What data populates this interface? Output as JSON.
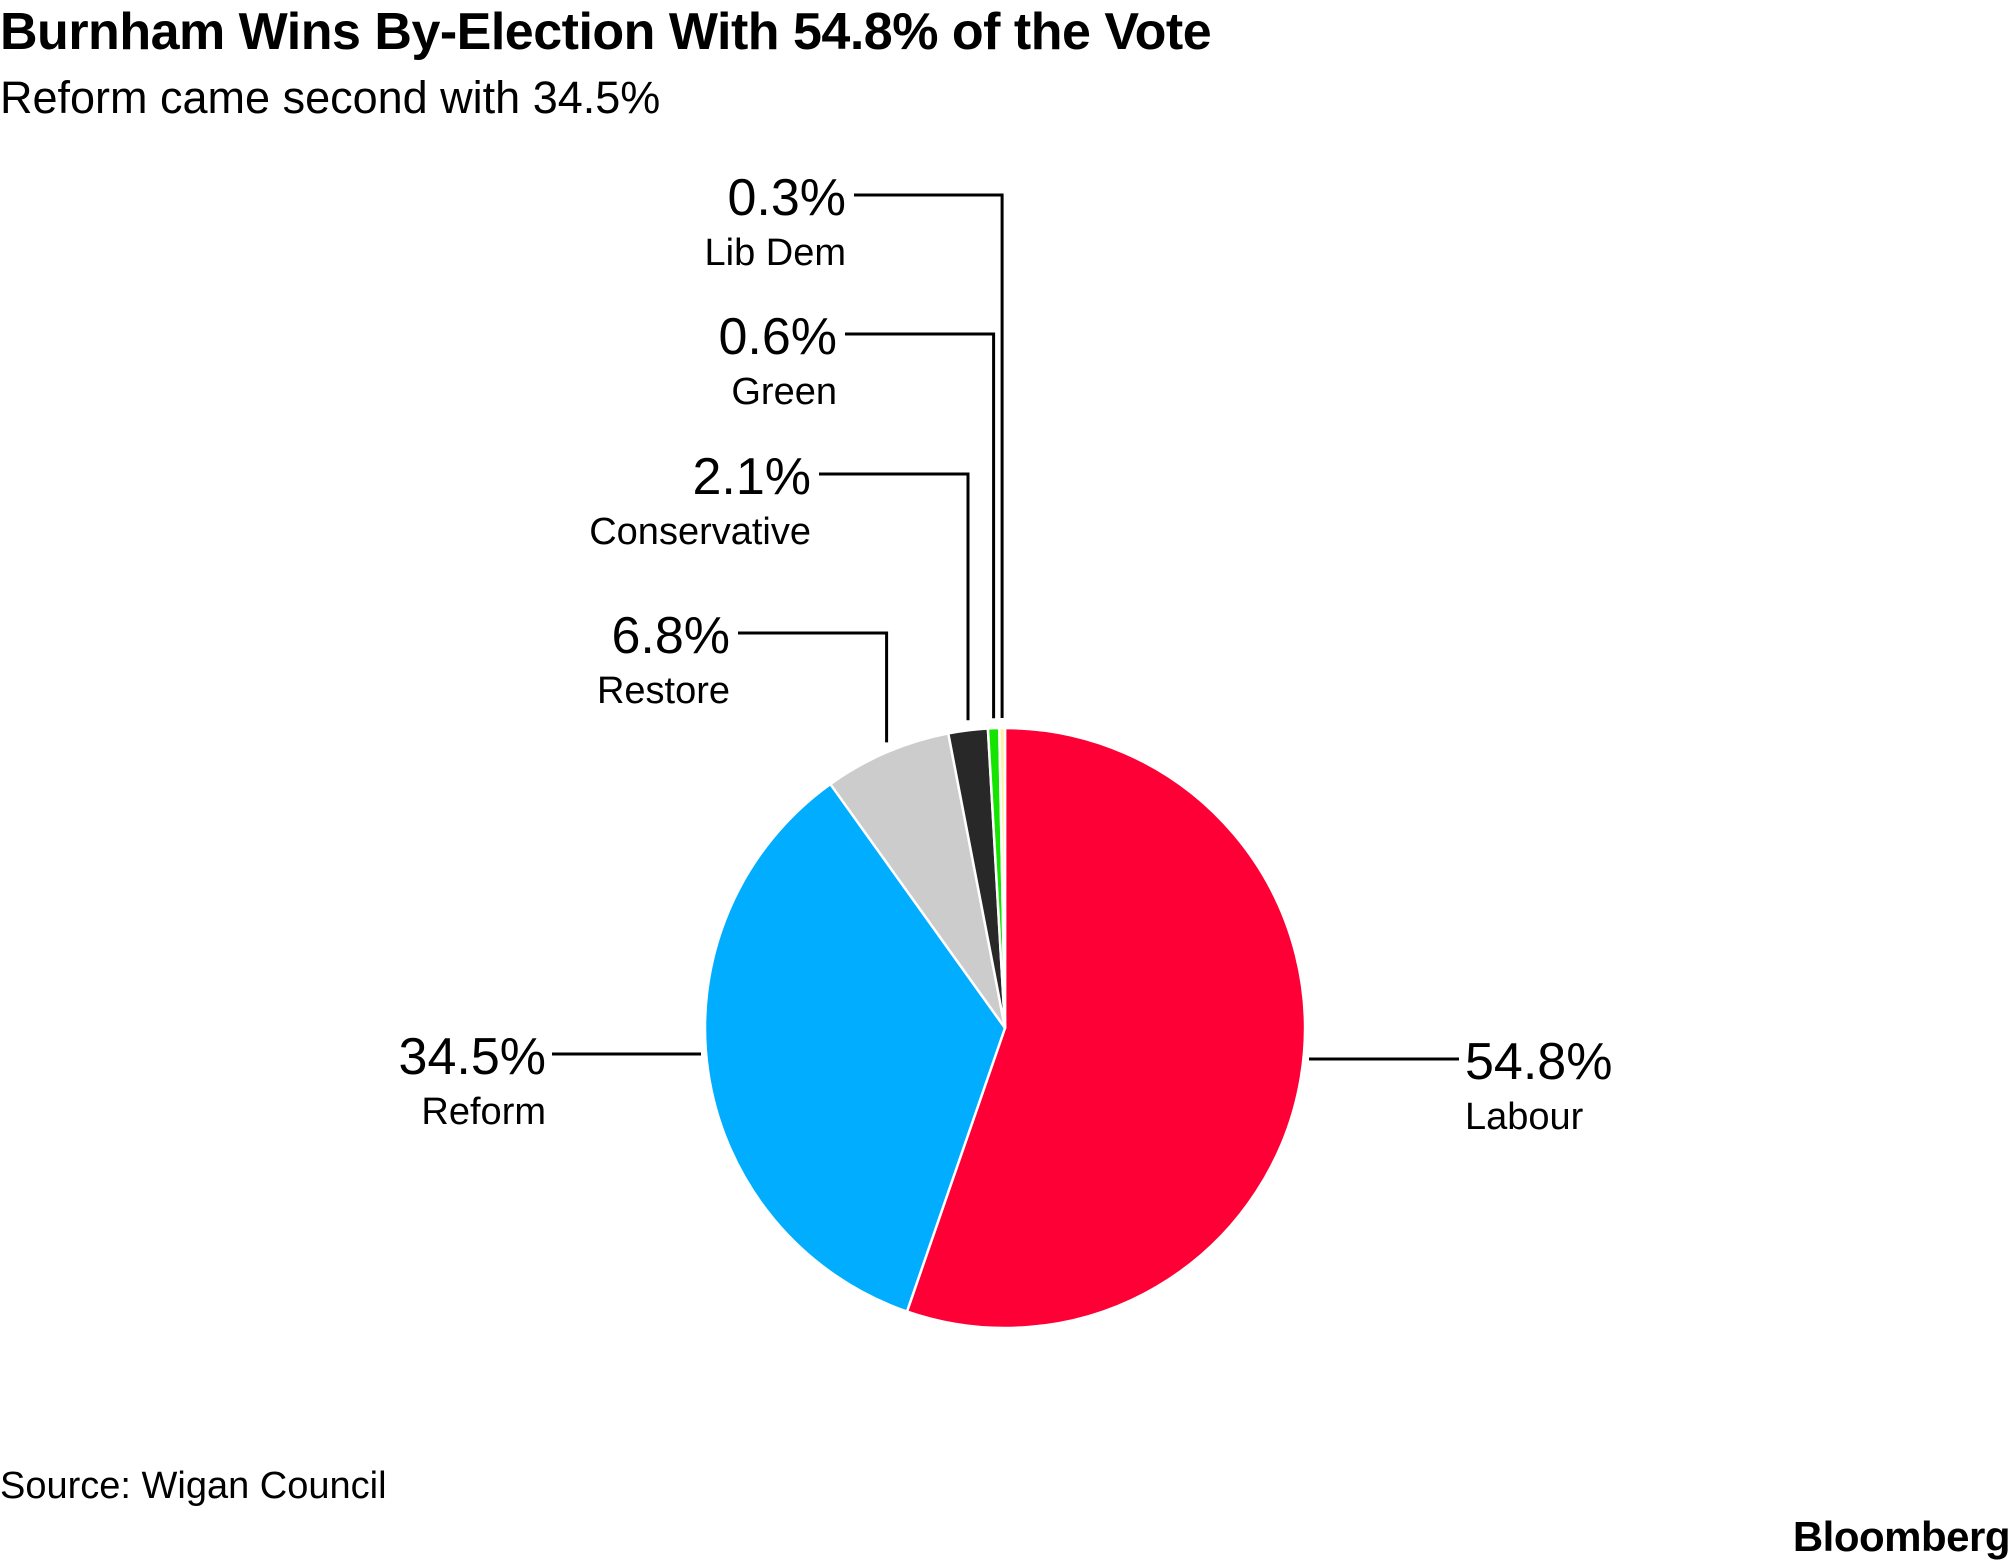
{
  "title": "Burnham Wins By-Election With 54.8% of the Vote",
  "subtitle": "Reform came second with 34.5%",
  "source": "Source: Wigan Council",
  "brand": "Bloomberg",
  "chart_data": {
    "type": "pie",
    "start": "12 o'clock, clockwise",
    "slices": [
      {
        "label": "Labour",
        "value": 54.8,
        "value_label": "54.8%",
        "color": "#ff0036"
      },
      {
        "label": "Reform",
        "value": 34.5,
        "value_label": "34.5%",
        "color": "#00adff"
      },
      {
        "label": "Restore",
        "value": 6.8,
        "value_label": "6.8%",
        "color": "#cccccc"
      },
      {
        "label": "Conservative",
        "value": 2.1,
        "value_label": "2.1%",
        "color": "#282828"
      },
      {
        "label": "Green",
        "value": 0.6,
        "value_label": "0.6%",
        "color": "#13e500"
      },
      {
        "label": "Lib Dem",
        "value": 0.3,
        "value_label": "0.3%",
        "color": "#fff2a3"
      }
    ]
  }
}
